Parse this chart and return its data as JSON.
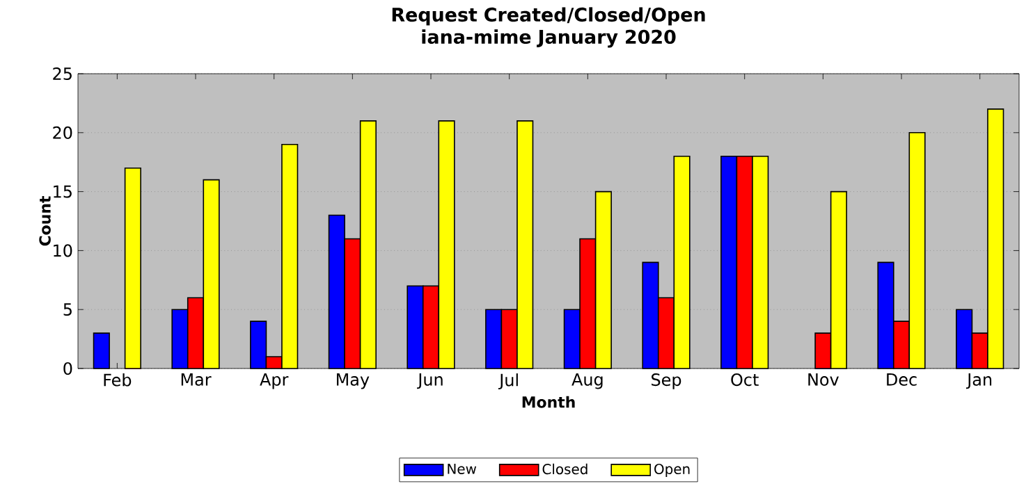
{
  "chart_data": {
    "type": "bar",
    "title": "Request Created/Closed/Open\niana-mime January 2020",
    "xlabel": "Month",
    "ylabel": "Count",
    "categories": [
      "Feb",
      "Mar",
      "Apr",
      "May",
      "Jun",
      "Jul",
      "Aug",
      "Sep",
      "Oct",
      "Nov",
      "Dec",
      "Jan"
    ],
    "series": [
      {
        "name": "New",
        "color": "#0000ff",
        "values": [
          3,
          5,
          4,
          13,
          7,
          5,
          5,
          9,
          18,
          0,
          9,
          5
        ]
      },
      {
        "name": "Closed",
        "color": "#ff0000",
        "values": [
          0,
          6,
          1,
          11,
          7,
          5,
          11,
          6,
          18,
          3,
          4,
          3
        ]
      },
      {
        "name": "Open",
        "color": "#ffff00",
        "values": [
          17,
          16,
          19,
          21,
          21,
          21,
          15,
          18,
          18,
          15,
          20,
          22
        ]
      }
    ],
    "ylim": [
      0,
      25
    ],
    "yticks": [
      0,
      5,
      10,
      15,
      20,
      25
    ],
    "grid": "y",
    "legend": "bottom"
  }
}
